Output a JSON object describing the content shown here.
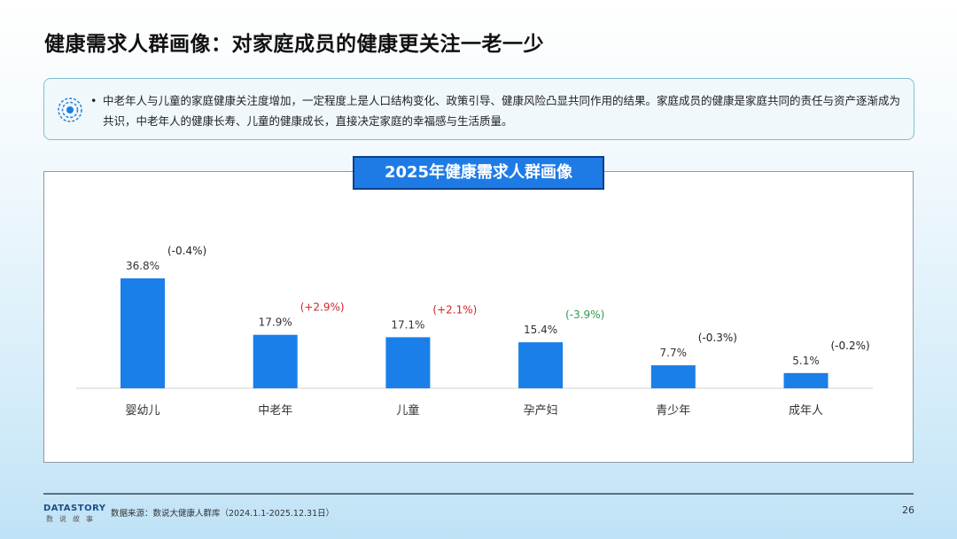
{
  "title": "健康需求人群画像：对家庭成员的健康更关注一老一少",
  "note": {
    "icon": "radar-dot-icon",
    "text": "中老年人与儿童的家庭健康关注度增加，一定程度上是人口结构变化、政策引导、健康风险凸显共同作用的结果。家庭成员的健康是家庭共同的责任与资产逐渐成为共识，中老年人的健康长寿、儿童的健康成长，直接决定家庭的幸福感与生活质量。"
  },
  "chart_data": {
    "type": "bar",
    "title": "2025年健康需求人群画像",
    "categories": [
      "婴幼儿",
      "中老年",
      "儿童",
      "孕产妇",
      "青少年",
      "成年人"
    ],
    "values": [
      36.8,
      17.9,
      17.1,
      15.4,
      7.7,
      5.1
    ],
    "value_labels": [
      "36.8%",
      "17.9%",
      "17.1%",
      "15.4%",
      "7.7%",
      "5.1%"
    ],
    "change_labels": [
      "(-0.4%)",
      "(+2.9%)",
      "(+2.1%)",
      "(-3.9%)",
      "(-0.3%)",
      "(-0.2%)"
    ],
    "change_values": [
      -0.4,
      2.9,
      2.1,
      -3.9,
      -0.3,
      -0.2
    ],
    "ylim": [
      0,
      40
    ],
    "grid": false,
    "colors": {
      "bar": "#1a7fe8",
      "up": "#d0262b",
      "down_highlight": "#2e9a4a",
      "neutral": "#222222"
    }
  },
  "footer": {
    "logo": "DATASTORY",
    "logo_sub": "数说故事",
    "source": "数据来源：数说大健康人群库（2024.1.1-2025.12.31日）",
    "page": "26"
  }
}
